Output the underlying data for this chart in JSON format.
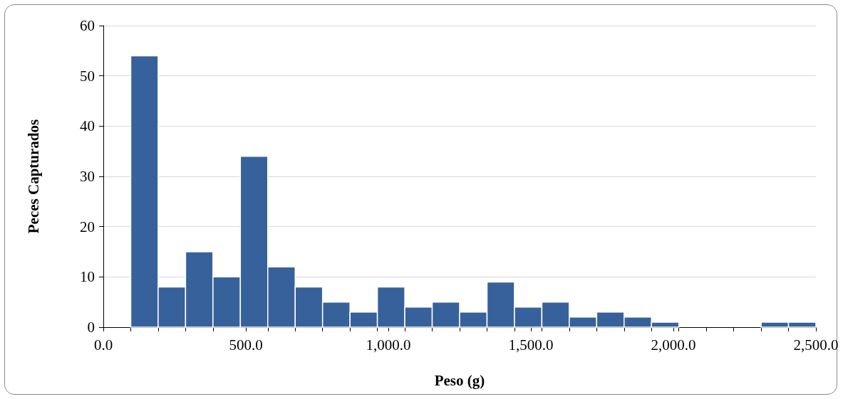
{
  "chart_data": {
    "type": "histogram",
    "xlabel": "Peso (g)",
    "ylabel": "Peces Capturados",
    "color": "#37619a",
    "bins": [
      96.2,
      192.3,
      288.5,
      384.6,
      480.8,
      576.9,
      673.1,
      769.2,
      865.4,
      961.5,
      1057.7,
      1153.8,
      1250,
      1346.2,
      1442.3,
      1538.5,
      1634.6,
      1730.8,
      1826.9,
      1923.1,
      2019.2,
      2115.4,
      2211.5,
      2307.7,
      2403.8,
      2500
    ],
    "values": [
      54,
      8,
      15,
      10,
      34,
      12,
      8,
      5,
      3,
      8,
      4,
      5,
      3,
      9,
      4,
      5,
      2,
      3,
      2,
      1,
      0,
      0,
      0,
      1,
      1
    ],
    "xlim": [
      0,
      2500
    ],
    "xticks": [
      {
        "value": 0,
        "label": "0.0"
      },
      {
        "value": 500,
        "label": "500.0"
      },
      {
        "value": 1000,
        "label": "1,000.0"
      },
      {
        "value": 1500,
        "label": "1,500.0"
      },
      {
        "value": 2000,
        "label": "2,000.0"
      },
      {
        "value": 2500,
        "label": "2,500.0"
      },
      {
        "value": 96.2,
        "label": null
      },
      {
        "value": 192.3,
        "label": null
      },
      {
        "value": 288.5,
        "label": null
      },
      {
        "value": 384.6,
        "label": null
      },
      {
        "value": 576.9,
        "label": null
      },
      {
        "value": 673.1,
        "label": null
      },
      {
        "value": 769.2,
        "label": null
      },
      {
        "value": 865.4,
        "label": null
      },
      {
        "value": 961.5,
        "label": null
      },
      {
        "value": 1057.7,
        "label": null
      },
      {
        "value": 1153.8,
        "label": null
      },
      {
        "value": 1250,
        "label": null
      },
      {
        "value": 1346.2,
        "label": null
      },
      {
        "value": 1442.3,
        "label": null
      },
      {
        "value": 1538.5,
        "label": null
      },
      {
        "value": 1634.6,
        "label": null
      },
      {
        "value": 1730.8,
        "label": null
      },
      {
        "value": 1826.9,
        "label": null
      },
      {
        "value": 1923.1,
        "label": null
      },
      {
        "value": 2019.2,
        "label": null
      },
      {
        "value": 2115.4,
        "label": null
      },
      {
        "value": 2211.5,
        "label": null
      },
      {
        "value": 2307.7,
        "label": null
      },
      {
        "value": 2403.8,
        "label": null
      }
    ],
    "ylim": [
      0,
      60
    ],
    "yticks": [
      0,
      10,
      20,
      30,
      40,
      50,
      60
    ],
    "grid": "y"
  }
}
